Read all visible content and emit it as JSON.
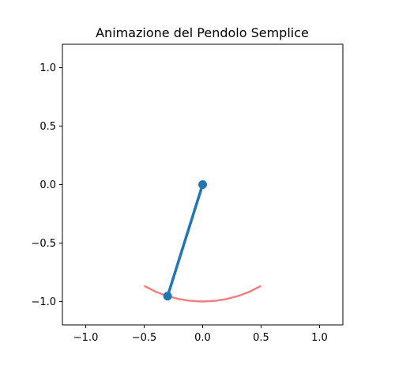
{
  "chart_data": {
    "type": "line",
    "title": "Animazione del Pendolo Semplice",
    "xlabel": "",
    "ylabel": "",
    "xlim": [
      -1.2,
      1.2
    ],
    "ylim": [
      -1.2,
      1.2
    ],
    "grid": false,
    "xticks": [
      -1.0,
      -0.5,
      0.0,
      0.5,
      1.0
    ],
    "yticks": [
      -1.0,
      -0.5,
      0.0,
      0.5,
      1.0
    ],
    "xtick_labels": [
      "−1.0",
      "−0.5",
      "0.0",
      "0.5",
      "1.0"
    ],
    "ytick_labels": [
      "−1.0",
      "−0.5",
      "0.0",
      "0.5",
      "1.0"
    ],
    "series": [
      {
        "role": "trajectory",
        "color": "#f08080",
        "x": [
          -0.5,
          -0.4,
          -0.3,
          -0.2,
          -0.1,
          0.0,
          0.1,
          0.2,
          0.3,
          0.4,
          0.5
        ],
        "y": [
          -0.866,
          -0.917,
          -0.954,
          -0.98,
          -0.995,
          -1.0,
          -0.995,
          -0.98,
          -0.954,
          -0.917,
          -0.866
        ]
      },
      {
        "role": "rod",
        "color": "#1f77b4",
        "x": [
          0.0,
          -0.3
        ],
        "y": [
          0.0,
          -0.954
        ]
      }
    ],
    "markers": [
      {
        "role": "pivot",
        "x": 0.0,
        "y": 0.0,
        "color": "#1f77b4"
      },
      {
        "role": "bob",
        "x": -0.3,
        "y": -0.954,
        "color": "#1f77b4"
      }
    ]
  }
}
